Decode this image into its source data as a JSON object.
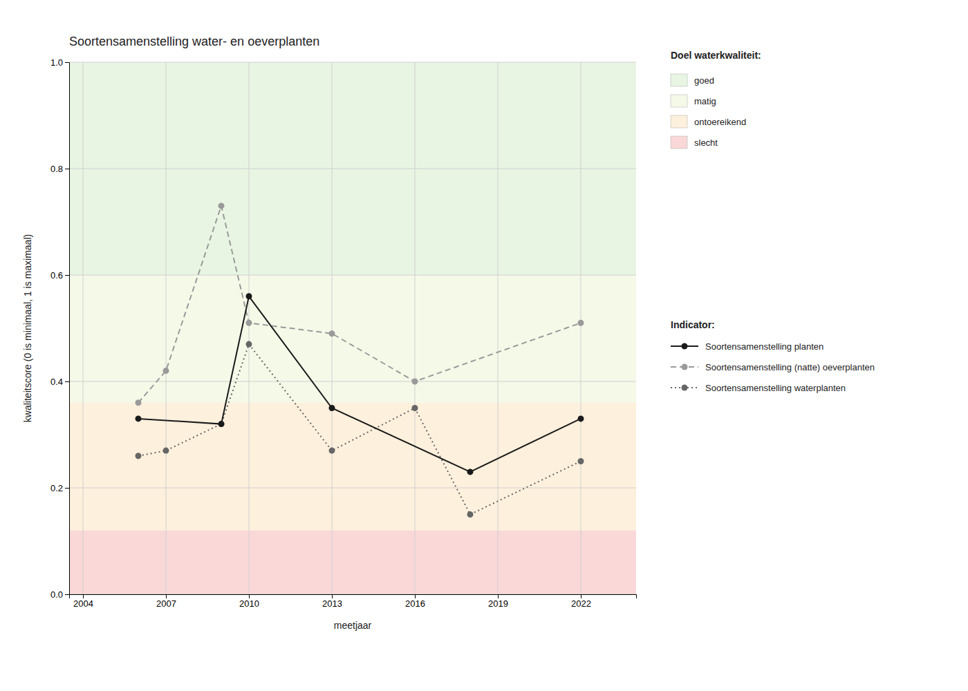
{
  "chart_data": {
    "type": "line",
    "title": "Soortensamenstelling water- en oeverplanten",
    "x_label": "meetjaar",
    "y_label": "kwaliteitscore (0 is minimaal, 1 is maximaal)",
    "xlim": [
      2003.5,
      2024.0
    ],
    "ylim": [
      0.0,
      1.0
    ],
    "xticks": [
      2004,
      2007,
      2010,
      2013,
      2016,
      2019,
      2022
    ],
    "yticks": [
      {
        "value": 0.0,
        "label": "0.0"
      },
      0.2,
      0.4,
      0.6,
      0.8,
      {
        "value": 1.0,
        "label": "1.0"
      }
    ],
    "grid": true,
    "band_legend_title": "Doel waterkwaliteit:",
    "bands": [
      {
        "name": "goed",
        "color": "#e8f5e2",
        "ymin": 0.6,
        "ymax": 1.0
      },
      {
        "name": "matig",
        "color": "#f5f9e8",
        "ymin": 0.36,
        "ymax": 0.6
      },
      {
        "name": "ontoereikend",
        "color": "#fdf0dc",
        "ymin": 0.12,
        "ymax": 0.36
      },
      {
        "name": "slecht",
        "color": "#fad8d8",
        "ymin": 0.0,
        "ymax": 0.12
      }
    ],
    "series_legend_title": "Indicator:",
    "series": [
      {
        "name": "Soortensamenstelling planten",
        "color": "#1a1a1a",
        "line_style": "solid",
        "marker": "circle",
        "x": [
          2006,
          2009,
          2010,
          2013,
          2018,
          2022
        ],
        "values": [
          0.33,
          0.32,
          0.56,
          0.35,
          0.23,
          0.33
        ]
      },
      {
        "name": "Soortensamenstelling (natte) oeverplanten",
        "color": "#9a9a9a",
        "line_style": "dashed",
        "marker": "circle",
        "x": [
          2006,
          2007,
          2009,
          2010,
          2013,
          2016,
          2022
        ],
        "values": [
          0.36,
          0.42,
          0.73,
          0.51,
          0.49,
          0.4,
          0.51
        ]
      },
      {
        "name": "Soortensamenstelling waterplanten",
        "color": "#666666",
        "line_style": "dotted",
        "marker": "circle",
        "x": [
          2006,
          2007,
          2009,
          2010,
          2013,
          2016,
          2018,
          2022
        ],
        "values": [
          0.26,
          0.27,
          0.32,
          0.47,
          0.27,
          0.35,
          0.15,
          0.25
        ]
      }
    ]
  }
}
